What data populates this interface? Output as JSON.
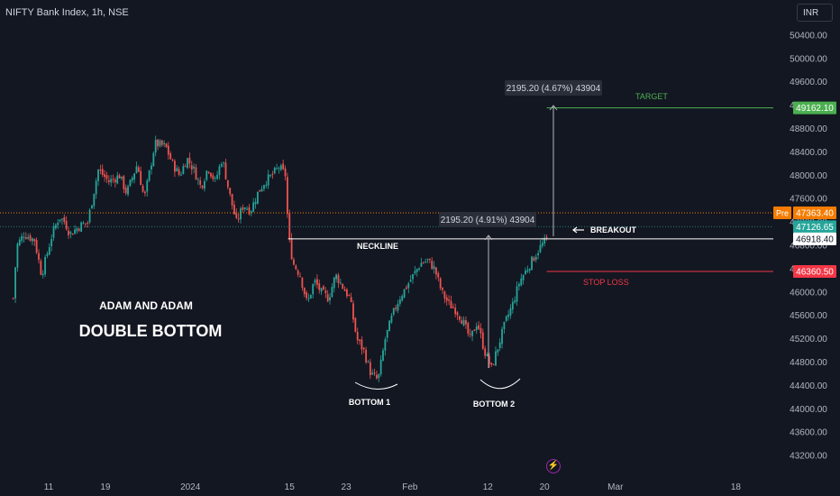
{
  "header": {
    "title": "NIFTY Bank Index, 1h, NSE",
    "currency": "INR"
  },
  "colors": {
    "background": "#131722",
    "up": "#26a69a",
    "down": "#ef5350",
    "target": "#4caf50",
    "stop": "#f23645",
    "pre": "#f57c00",
    "neckline": "#ffffff",
    "last": "#26a69a"
  },
  "chart_data": {
    "type": "candlestick",
    "title": "NIFTY Bank Index, 1h, NSE",
    "ylim": [
      42900,
      50700
    ],
    "y_ticks": [
      43200,
      43600,
      44000,
      44400,
      44800,
      45200,
      45600,
      46000,
      46400,
      46800,
      47200,
      47600,
      48000,
      48400,
      48800,
      49200,
      49600,
      50000,
      50400
    ],
    "y_tick_labels": [
      "43200.00",
      "43600.00",
      "44000.00",
      "44400.00",
      "44800.00",
      "45200.00",
      "45600.00",
      "46000.00",
      "46400.00",
      "46800.00",
      "47200.00",
      "47600.00",
      "48000.00",
      "48400.00",
      "48800.00",
      "49200.00",
      "49600.00",
      "50000.00",
      "50400.00"
    ],
    "x_ticks": [
      {
        "label": "11",
        "day": 0
      },
      {
        "label": "19",
        "day": 8
      },
      {
        "label": "2024",
        "day": 20
      },
      {
        "label": "15",
        "day": 34
      },
      {
        "label": "23",
        "day": 42
      },
      {
        "label": "Feb",
        "day": 51
      },
      {
        "label": "12",
        "day": 62
      },
      {
        "label": "20",
        "day": 70
      },
      {
        "label": "Mar",
        "day": 80
      },
      {
        "label": "18",
        "day": 97
      }
    ],
    "path_points": [
      [
        -5,
        45900
      ],
      [
        -4.5,
        46800
      ],
      [
        -3.5,
        47000
      ],
      [
        -2,
        46900
      ],
      [
        -1,
        46300
      ],
      [
        0.5,
        47000
      ],
      [
        1.5,
        47300
      ],
      [
        2.3,
        47200
      ],
      [
        3,
        47000
      ],
      [
        4.5,
        47150
      ],
      [
        5.5,
        47200
      ],
      [
        7,
        48100
      ],
      [
        8.5,
        47900
      ],
      [
        10,
        48000
      ],
      [
        11,
        47700
      ],
      [
        12.5,
        48200
      ],
      [
        13.5,
        47600
      ],
      [
        15,
        48550
      ],
      [
        16.5,
        48500
      ],
      [
        17.5,
        48200
      ],
      [
        18.5,
        48000
      ],
      [
        19.5,
        48300
      ],
      [
        20.5,
        48100
      ],
      [
        21.5,
        47800
      ],
      [
        22.5,
        48150
      ],
      [
        23.5,
        47900
      ],
      [
        24.5,
        48300
      ],
      [
        25.5,
        47700
      ],
      [
        26.5,
        47200
      ],
      [
        27.5,
        47500
      ],
      [
        28.5,
        47400
      ],
      [
        29.5,
        47700
      ],
      [
        30.5,
        47900
      ],
      [
        31.5,
        48000
      ],
      [
        32.5,
        48150
      ],
      [
        33.5,
        48000
      ],
      [
        33.8,
        47000
      ],
      [
        34.5,
        46500
      ],
      [
        35.5,
        46300
      ],
      [
        36.5,
        45800
      ],
      [
        37.5,
        46200
      ],
      [
        38.5,
        46000
      ],
      [
        39.5,
        45900
      ],
      [
        40.5,
        46300
      ],
      [
        41.5,
        46100
      ],
      [
        42.5,
        45900
      ],
      [
        43.5,
        45200
      ],
      [
        44.5,
        45000
      ],
      [
        45.5,
        44600
      ],
      [
        46.5,
        44500
      ],
      [
        47.5,
        45200
      ],
      [
        48.5,
        45600
      ],
      [
        49.5,
        45900
      ],
      [
        50.5,
        46100
      ],
      [
        51.5,
        46300
      ],
      [
        52.5,
        46500
      ],
      [
        53.5,
        46550
      ],
      [
        54.5,
        46400
      ],
      [
        55.5,
        46000
      ],
      [
        56.5,
        45800
      ],
      [
        57.5,
        45700
      ],
      [
        58.5,
        45500
      ],
      [
        59.5,
        45200
      ],
      [
        60.5,
        45500
      ],
      [
        61.5,
        45000
      ],
      [
        62.5,
        44700
      ],
      [
        63.5,
        45100
      ],
      [
        64.5,
        45500
      ],
      [
        65.5,
        45800
      ],
      [
        66.5,
        46200
      ],
      [
        67.5,
        46400
      ],
      [
        68.5,
        46600
      ],
      [
        69.5,
        46800
      ],
      [
        70.3,
        46900
      ]
    ],
    "horizontal_lines": [
      {
        "name": "neckline",
        "value": 46918.4
      },
      {
        "name": "target",
        "value": 49162.1
      },
      {
        "name": "stop-loss",
        "value": 46360.5
      },
      {
        "name": "pre-market",
        "value": 47363.4
      },
      {
        "name": "last-price",
        "value": 47126.65
      }
    ],
    "price_labels": [
      {
        "name": "target-price-label",
        "value": "49162.10",
        "color": "#4caf50"
      },
      {
        "name": "pre-price-label",
        "value": "47363.40",
        "color": "#f57c00",
        "tag": "Pre"
      },
      {
        "name": "last-price-label",
        "value": "47126.65",
        "color": "#26a69a"
      },
      {
        "name": "neckline-price-label",
        "value": "46918.40",
        "color": "#ffffff"
      },
      {
        "name": "stop-price-label",
        "value": "46360.50",
        "color": "#f23645"
      }
    ],
    "annotations": {
      "measure_1": "2195.20 (4.91%) 43904",
      "measure_2": "2195.20 (4.67%) 43904",
      "target": "TARGET",
      "breakout": "BREAKOUT",
      "stop_loss": "STOP LOSS",
      "neckline": "NECKLINE",
      "bottom_1": "BOTTOM 1",
      "bottom_2": "BOTTOM 2",
      "author": "ADAM AND ADAM",
      "pattern": "DOUBLE BOTTOM"
    }
  }
}
